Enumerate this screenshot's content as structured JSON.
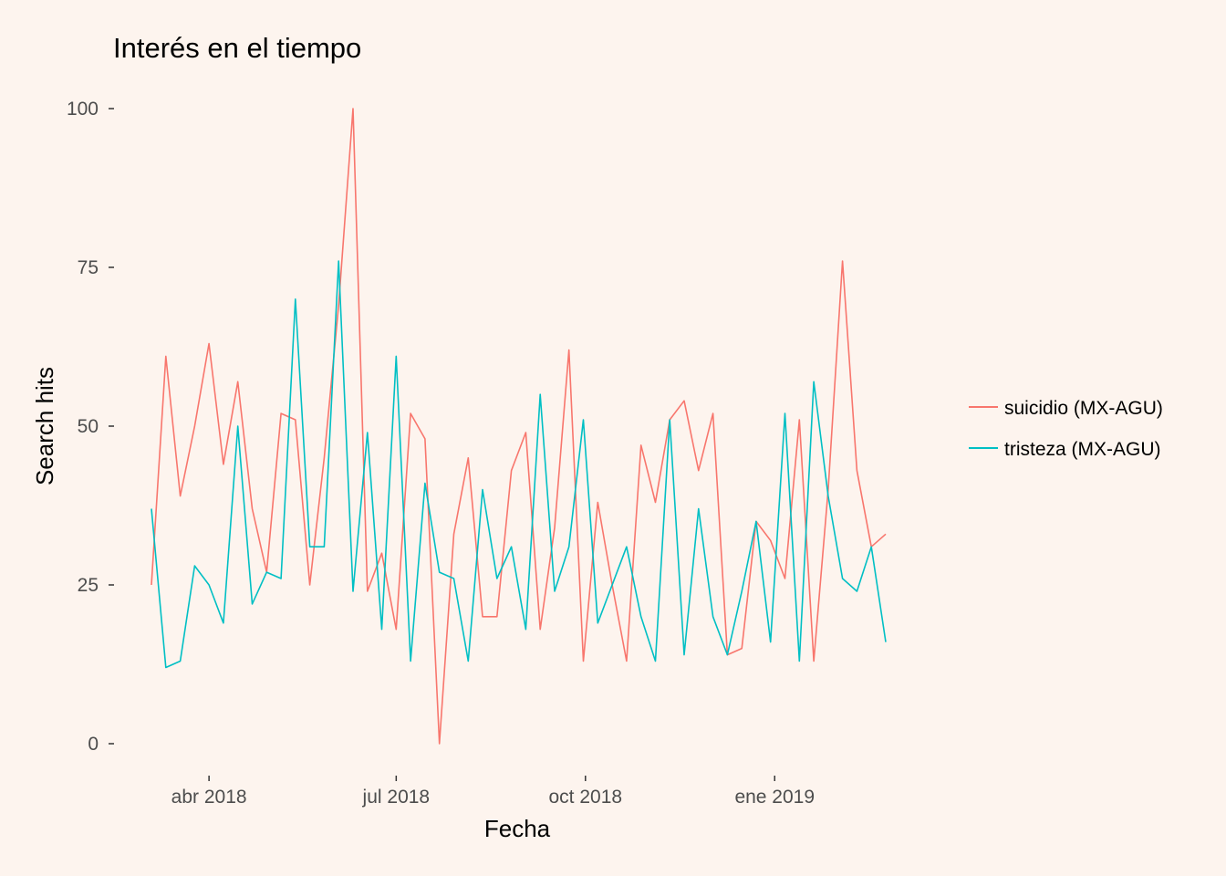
{
  "chart_data": {
    "type": "line",
    "title": "Interés en el tiempo",
    "xlabel": "Fecha",
    "ylabel": "Search hits",
    "ylim": [
      0,
      100
    ],
    "grid": false,
    "legend_position": "right",
    "y_ticks": [
      "0",
      "25",
      "50",
      "75",
      "100"
    ],
    "x_ticks": [
      {
        "label": "abr 2018",
        "date": "2018-04-01"
      },
      {
        "label": "jul 2018",
        "date": "2018-07-01"
      },
      {
        "label": "oct 2018",
        "date": "2018-10-01"
      },
      {
        "label": "ene 2019",
        "date": "2019-01-01"
      }
    ],
    "x": [
      "2018-03-04",
      "2018-03-11",
      "2018-03-18",
      "2018-03-25",
      "2018-04-01",
      "2018-04-08",
      "2018-04-15",
      "2018-04-22",
      "2018-04-29",
      "2018-05-06",
      "2018-05-13",
      "2018-05-20",
      "2018-05-27",
      "2018-06-03",
      "2018-06-10",
      "2018-06-17",
      "2018-06-24",
      "2018-07-01",
      "2018-07-08",
      "2018-07-15",
      "2018-07-22",
      "2018-07-29",
      "2018-08-05",
      "2018-08-12",
      "2018-08-19",
      "2018-08-26",
      "2018-09-02",
      "2018-09-09",
      "2018-09-16",
      "2018-09-23",
      "2018-09-30",
      "2018-10-07",
      "2018-10-14",
      "2018-10-21",
      "2018-10-28",
      "2018-11-04",
      "2018-11-11",
      "2018-11-18",
      "2018-11-25",
      "2018-12-02",
      "2018-12-09",
      "2018-12-16",
      "2018-12-23",
      "2018-12-30",
      "2019-01-06",
      "2019-01-13",
      "2019-01-20",
      "2019-01-27",
      "2019-02-03",
      "2019-02-10",
      "2019-02-17",
      "2019-02-24"
    ],
    "series": [
      {
        "name": "suicidio (MX-AGU)",
        "color": "#f8766d",
        "values": [
          25,
          61,
          39,
          50,
          63,
          44,
          57,
          37,
          27,
          52,
          51,
          25,
          45,
          69,
          100,
          24,
          30,
          18,
          52,
          48,
          0,
          33,
          45,
          20,
          20,
          43,
          49,
          18,
          34,
          62,
          13,
          38,
          25,
          13,
          47,
          38,
          51,
          54,
          43,
          52,
          14,
          15,
          35,
          32,
          26,
          51,
          13,
          40,
          76,
          43,
          31,
          33
        ]
      },
      {
        "name": "tristeza (MX-AGU)",
        "color": "#00bfc4",
        "values": [
          37,
          12,
          13,
          28,
          25,
          19,
          50,
          22,
          27,
          26,
          70,
          31,
          31,
          76,
          24,
          49,
          18,
          61,
          13,
          41,
          27,
          26,
          13,
          40,
          26,
          31,
          18,
          55,
          24,
          31,
          51,
          19,
          25,
          31,
          20,
          13,
          51,
          14,
          37,
          20,
          14,
          24,
          35,
          16,
          52,
          13,
          57,
          39,
          26,
          24,
          31,
          16
        ]
      }
    ]
  }
}
